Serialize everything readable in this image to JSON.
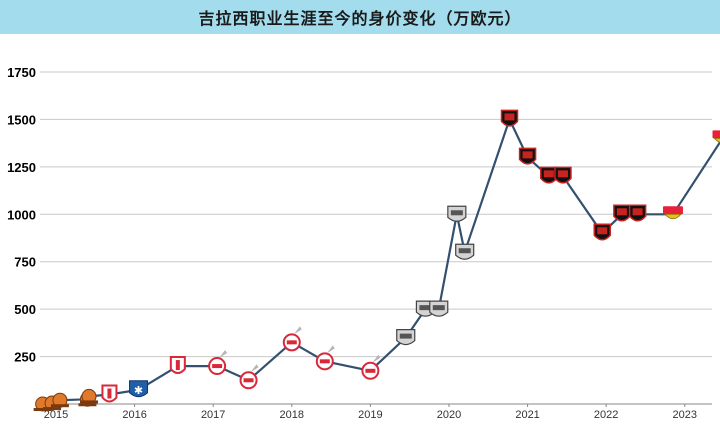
{
  "title": "吉拉西职业生涯至今的身价变化（万欧元）",
  "colors": {
    "title_bg": "#a2dced",
    "line": "#34506f",
    "grid": "#c9c9c9",
    "club_salzburg": "#e07a2a",
    "club_lille": "#d9283a",
    "club_auxerre": "#1f5fa8",
    "club_cologne": "#d9283a",
    "club_sanbenedettese": "#9a9a9a",
    "club_rennes": "#c8231f",
    "club_stuttgart": "#e8203a"
  },
  "chart_data": {
    "type": "line",
    "title": "吉拉西职业生涯至今的身价变化（万欧元）",
    "xlabel": "",
    "ylabel": "",
    "ylim": [
      0,
      1750
    ],
    "xlim": [
      2015,
      2023.55
    ],
    "y_ticks": [
      "250",
      "500",
      "750",
      "1000",
      "1250",
      "1500",
      "1750"
    ],
    "x_ticks": [
      "2015",
      "2016",
      "2017",
      "2018",
      "2019",
      "2020",
      "2021",
      "2022",
      "2023"
    ],
    "grid": true,
    "legend": "none",
    "x": [
      2014.83,
      2014.95,
      2015.05,
      2015.4,
      2015.42,
      2015.68,
      2016.05,
      2016.55,
      2017.05,
      2017.45,
      2018.0,
      2018.42,
      2019.0,
      2019.45,
      2019.7,
      2019.87,
      2020.1,
      2020.2,
      2020.77,
      2021.0,
      2021.27,
      2021.45,
      2021.95,
      2022.2,
      2022.4,
      2022.85,
      2023.48
    ],
    "values": [
      0,
      5,
      20,
      25,
      40,
      50,
      75,
      200,
      200,
      125,
      325,
      225,
      175,
      350,
      500,
      500,
      1000,
      800,
      1500,
      1300,
      1200,
      1200,
      900,
      1000,
      1000,
      1000,
      1400
    ],
    "clubs": [
      "salzburg",
      "salzburg",
      "salzburg",
      "salzburg",
      "salzburg",
      "lille",
      "auxerre",
      "lille",
      "cologne",
      "cologne",
      "cologne",
      "cologne",
      "cologne",
      "sanbenedettese",
      "sanbenedettese",
      "sanbenedettese",
      "sanbenedettese",
      "sanbenedettese",
      "rennes",
      "rennes",
      "rennes",
      "rennes",
      "rennes",
      "rennes",
      "rennes",
      "stuttgart",
      "stuttgart"
    ]
  }
}
